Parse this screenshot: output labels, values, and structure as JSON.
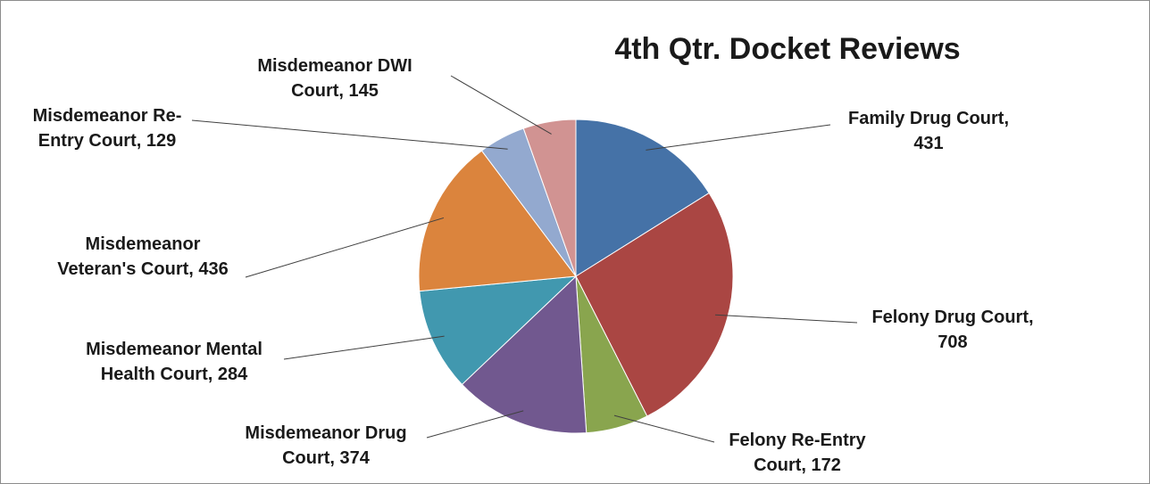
{
  "chart_data": {
    "type": "pie",
    "title": "4th Qtr. Docket Reviews",
    "slices": [
      {
        "line1": "Family Drug Court,",
        "line2": "431",
        "value": 431,
        "color": "#4572a7"
      },
      {
        "line1": "Felony Drug Court,",
        "line2": "708",
        "value": 708,
        "color": "#aa4643"
      },
      {
        "line1": "Felony Re-Entry",
        "line2": "Court, 172",
        "value": 172,
        "color": "#89a54e"
      },
      {
        "line1": "Misdemeanor Drug",
        "line2": "Court, 374",
        "value": 374,
        "color": "#71588f"
      },
      {
        "line1": "Misdemeanor Mental",
        "line2": "Health Court, 284",
        "value": 284,
        "color": "#4198af"
      },
      {
        "line1": "Misdemeanor",
        "line2": "Veteran's Court, 436",
        "value": 436,
        "color": "#db843d"
      },
      {
        "line1": "Misdemeanor Re-",
        "line2": "Entry Court, 129",
        "value": 129,
        "color": "#93a9cf"
      },
      {
        "line1": "Misdemeanor DWI",
        "line2": "Court, 145",
        "value": 145,
        "color": "#d19392"
      }
    ],
    "start_angle": "12 o'clock",
    "direction": "clockwise",
    "legend": "none"
  }
}
